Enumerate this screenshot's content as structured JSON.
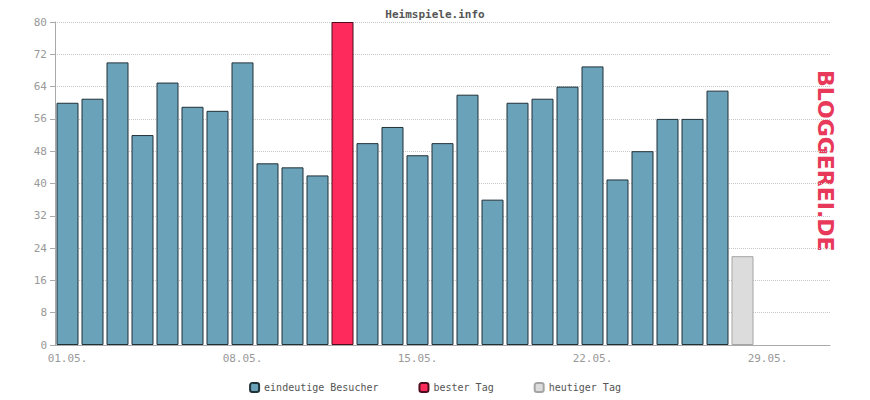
{
  "chart_data": {
    "type": "bar",
    "title": "Heimspiele.info",
    "annotations": [
      "BLOGGEREI.DE"
    ],
    "categories": [
      "01.05.",
      null,
      null,
      null,
      null,
      null,
      null,
      "08.05.",
      null,
      null,
      null,
      null,
      null,
      null,
      "15.05.",
      null,
      null,
      null,
      null,
      null,
      null,
      "22.05.",
      null,
      null,
      null,
      null,
      null,
      null,
      "29.05.",
      null,
      null
    ],
    "series": [
      {
        "name": "eindeutige Besucher",
        "color": "#6aa2ba",
        "values": [
          60,
          61,
          70,
          52,
          65,
          59,
          58,
          70,
          45,
          44,
          42,
          null,
          50,
          54,
          47,
          50,
          62,
          36,
          60,
          61,
          64,
          69,
          41,
          48,
          56,
          56,
          63,
          null,
          null,
          null,
          null
        ]
      },
      {
        "name": "bester Tag",
        "color": "#ff2a5c",
        "values": [
          null,
          null,
          null,
          null,
          null,
          null,
          null,
          null,
          null,
          null,
          null,
          80,
          null,
          null,
          null,
          null,
          null,
          null,
          null,
          null,
          null,
          null,
          null,
          null,
          null,
          null,
          null,
          null,
          null,
          null,
          null
        ]
      },
      {
        "name": "heutiger Tag",
        "color": "#dcdcdc",
        "values": [
          null,
          null,
          null,
          null,
          null,
          null,
          null,
          null,
          null,
          null,
          null,
          null,
          null,
          null,
          null,
          null,
          null,
          null,
          null,
          null,
          null,
          null,
          null,
          null,
          null,
          null,
          null,
          22,
          null,
          null,
          null
        ]
      }
    ],
    "stacked": true,
    "ylim": [
      0,
      80
    ],
    "yticks": [
      0,
      8,
      16,
      24,
      32,
      40,
      48,
      56,
      64,
      72,
      80
    ],
    "grid": true,
    "legend": "bottom"
  }
}
